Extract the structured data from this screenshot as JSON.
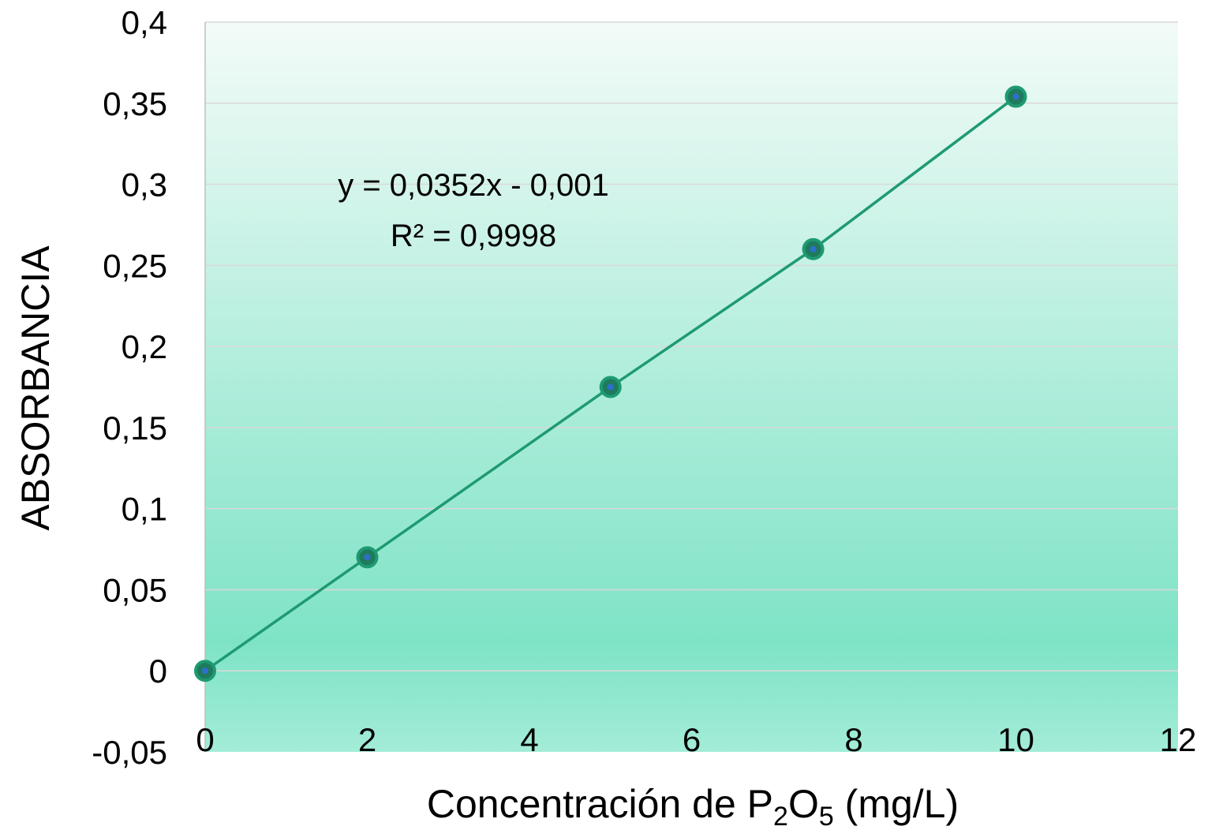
{
  "chart_data": {
    "type": "scatter",
    "x": [
      0,
      2,
      5,
      7.5,
      10
    ],
    "y": [
      0,
      0.07,
      0.175,
      0.26,
      0.354
    ],
    "xlabel": {
      "pre": "Concentración de P",
      "sub1": "2",
      "mid": "O",
      "sub2": "5",
      "post": " (mg/L)"
    },
    "ylabel": "ABSORBANCIA",
    "xlim": [
      0,
      12
    ],
    "ylim": [
      -0.05,
      0.4
    ],
    "xticks": [
      0,
      2,
      4,
      6,
      8,
      10,
      12
    ],
    "xtick_labels": [
      "0",
      "2",
      "4",
      "6",
      "8",
      "10",
      "12"
    ],
    "yticks": [
      -0.05,
      0,
      0.05,
      0.1,
      0.15,
      0.2,
      0.25,
      0.3,
      0.35,
      0.4
    ],
    "ytick_labels": [
      "-0,05",
      "0",
      "0,05",
      "0,1",
      "0,15",
      "0,2",
      "0,25",
      "0,3",
      "0,35",
      "0,4"
    ],
    "grid": "horizontal",
    "trendline": {
      "slope": 0.0352,
      "intercept": -0.001,
      "x_range": [
        0,
        10
      ]
    },
    "annotations": {
      "equation": "y = 0,0352x - 0,001",
      "r2": "R² = 0,9998"
    },
    "colors": {
      "line": "#1e9a72",
      "marker_edge": "#1e9a72",
      "marker_fill": "#1f7a5c",
      "marker_center": "#2e6fcc",
      "plot_bg_top": "#f3fbf8",
      "plot_bg_bottom": "#7ee3c6",
      "grid": "#d9d9d9"
    }
  }
}
